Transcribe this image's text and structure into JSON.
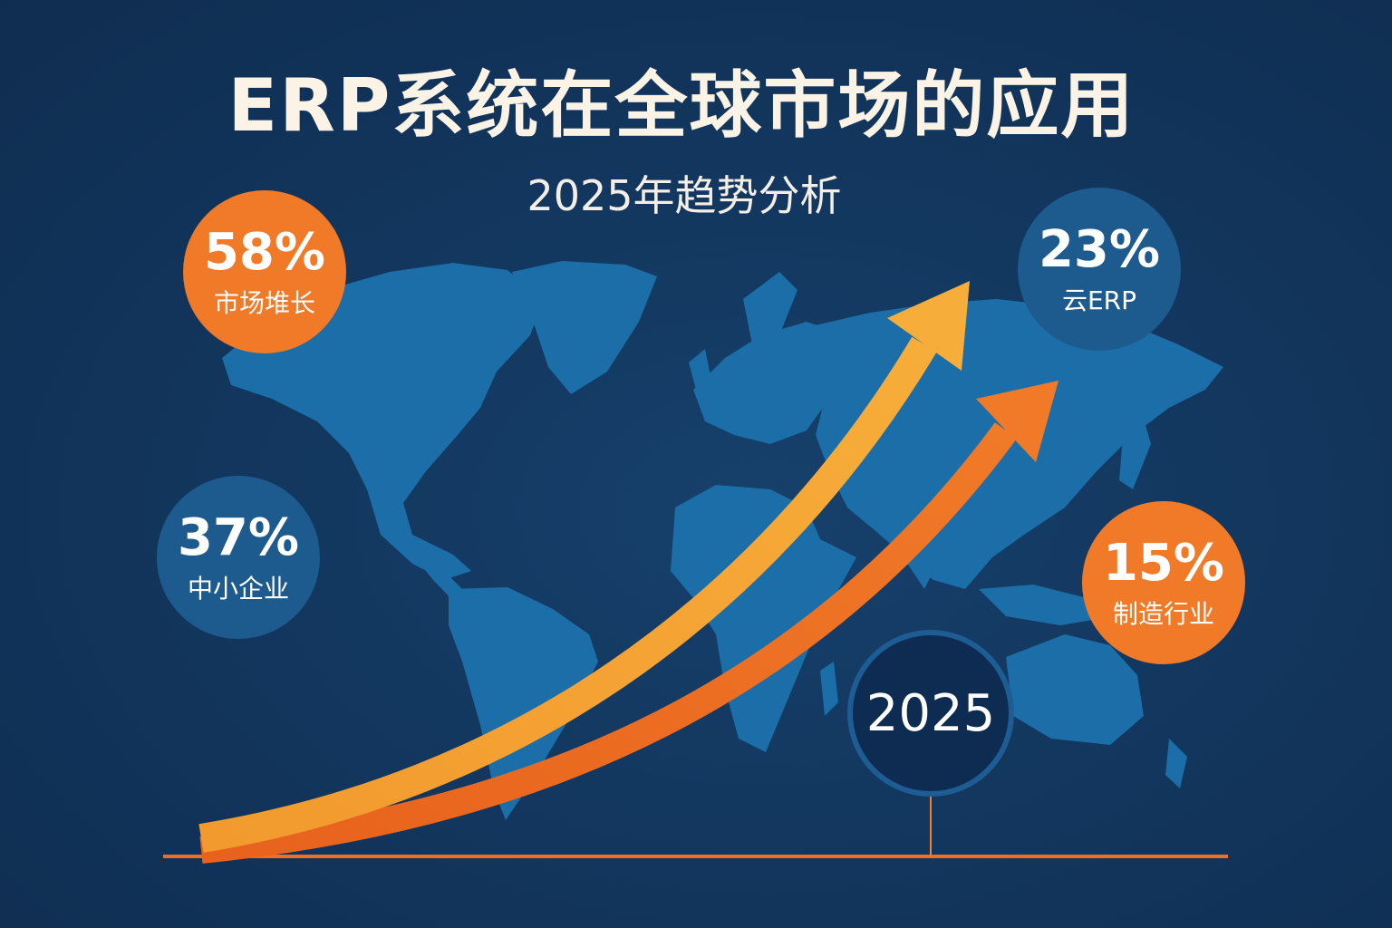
{
  "title": "ERP系统在全球市场的应用",
  "subtitle": "2025年趋势分析",
  "stats": [
    {
      "value": "58%",
      "label": "市场堆长",
      "color": "#f07a28"
    },
    {
      "value": "23%",
      "label": "云ERP",
      "color": "#1d5b8e"
    },
    {
      "value": "37%",
      "label": "中小企业",
      "color": "#1d5b8e"
    },
    {
      "value": "15%",
      "label": "制造行业",
      "color": "#f07a28"
    }
  ],
  "timeline": {
    "year": "2025"
  },
  "colors": {
    "background": "#12355c",
    "map": "#1b6ea8",
    "arrow_primary": "#f5a031",
    "arrow_secondary": "#ee6f22",
    "accent_orange": "#f07a28",
    "accent_blue": "#1d5b8e"
  }
}
